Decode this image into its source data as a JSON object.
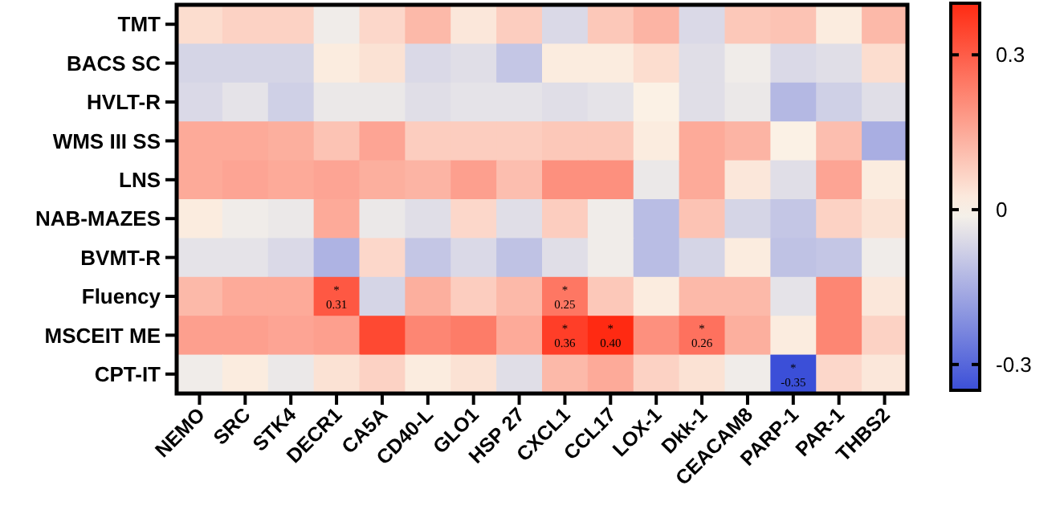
{
  "chart_data": {
    "type": "heatmap",
    "categories": [
      "NEMO",
      "SRC",
      "STK4",
      "DECR1",
      "CA5A",
      "CD40-L",
      "GLO1",
      "HSP 27",
      "CXCL1",
      "CCL17",
      "LOX-1",
      "Dkk-1",
      "CEACAM8",
      "PARP-1",
      "PAR-1",
      "THBS2"
    ],
    "y_categories": [
      "TMT",
      "BACS SC",
      "HVLT-R",
      "WMS III SS",
      "LNS",
      "NAB-MAZES",
      "BVMT-R",
      "Fluency",
      "MSCEIT ME",
      "CPT-IT"
    ],
    "cells": [
      [
        0.05,
        0.07,
        0.07,
        -0.02,
        0.06,
        0.12,
        0.03,
        0.08,
        -0.06,
        0.09,
        0.13,
        -0.06,
        0.09,
        0.1,
        0.02,
        0.12
      ],
      [
        -0.07,
        -0.07,
        -0.07,
        0.02,
        0.04,
        -0.06,
        -0.05,
        -0.1,
        0.02,
        0.02,
        0.05,
        -0.05,
        -0.02,
        -0.06,
        -0.05,
        0.05
      ],
      [
        -0.06,
        -0.04,
        -0.08,
        -0.03,
        -0.03,
        -0.05,
        -0.04,
        -0.04,
        -0.05,
        -0.04,
        0.01,
        -0.05,
        -0.03,
        -0.13,
        -0.08,
        -0.05
      ],
      [
        0.15,
        0.15,
        0.14,
        0.1,
        0.16,
        0.08,
        0.08,
        0.08,
        0.09,
        0.09,
        0.02,
        0.15,
        0.13,
        0.01,
        0.11,
        -0.15
      ],
      [
        0.15,
        0.16,
        0.15,
        0.16,
        0.14,
        0.13,
        0.17,
        0.11,
        0.2,
        0.2,
        -0.03,
        0.15,
        0.03,
        -0.05,
        0.16,
        0.02
      ],
      [
        0.02,
        -0.02,
        -0.03,
        0.15,
        -0.03,
        -0.05,
        0.06,
        -0.05,
        0.08,
        -0.02,
        -0.12,
        0.1,
        -0.07,
        -0.1,
        0.07,
        0.04
      ],
      [
        -0.04,
        -0.04,
        -0.06,
        -0.14,
        0.06,
        -0.1,
        -0.06,
        -0.11,
        -0.05,
        -0.02,
        -0.12,
        -0.07,
        0.02,
        -0.11,
        -0.1,
        -0.02
      ],
      [
        0.12,
        0.15,
        0.15,
        0.31,
        -0.07,
        0.14,
        0.08,
        0.12,
        0.25,
        0.09,
        0.02,
        0.12,
        0.12,
        -0.04,
        0.22,
        0.03
      ],
      [
        0.17,
        0.17,
        0.16,
        0.17,
        0.34,
        0.22,
        0.24,
        0.15,
        0.36,
        0.4,
        0.2,
        0.26,
        0.14,
        0.02,
        0.22,
        0.07
      ],
      [
        -0.02,
        0.02,
        -0.03,
        0.04,
        0.07,
        0.02,
        0.04,
        -0.05,
        0.12,
        0.15,
        0.07,
        0.04,
        -0.02,
        -0.35,
        0.06,
        0.03
      ]
    ],
    "cell_labels": [
      [
        null,
        null,
        null,
        null,
        null,
        null,
        null,
        null,
        null,
        null,
        null,
        null,
        null,
        null,
        null,
        null
      ],
      [
        null,
        null,
        null,
        null,
        null,
        null,
        null,
        null,
        null,
        null,
        null,
        null,
        null,
        null,
        null,
        null
      ],
      [
        null,
        null,
        null,
        null,
        null,
        null,
        null,
        null,
        null,
        null,
        null,
        null,
        null,
        null,
        null,
        null
      ],
      [
        null,
        null,
        null,
        null,
        null,
        null,
        null,
        null,
        null,
        null,
        null,
        null,
        null,
        null,
        null,
        null
      ],
      [
        null,
        null,
        null,
        null,
        null,
        null,
        null,
        null,
        null,
        null,
        null,
        null,
        null,
        null,
        null,
        null
      ],
      [
        null,
        null,
        null,
        null,
        null,
        null,
        null,
        null,
        null,
        null,
        null,
        null,
        null,
        null,
        null,
        null
      ],
      [
        null,
        null,
        null,
        null,
        null,
        null,
        null,
        null,
        null,
        null,
        null,
        null,
        null,
        null,
        null,
        null
      ],
      [
        null,
        null,
        null,
        "*\n0.31",
        null,
        null,
        null,
        null,
        "*\n0.25",
        null,
        null,
        null,
        null,
        null,
        null,
        null
      ],
      [
        null,
        null,
        null,
        null,
        null,
        null,
        null,
        null,
        "*\n0.36",
        "*\n0.40",
        null,
        "*\n0.26",
        null,
        null,
        null,
        null
      ],
      [
        null,
        null,
        null,
        null,
        null,
        null,
        null,
        null,
        null,
        null,
        null,
        null,
        null,
        "*\n-0.35",
        null,
        null
      ]
    ],
    "clim": [
      -0.35,
      0.4
    ],
    "cticks": [
      -0.3,
      0,
      0.3
    ]
  }
}
